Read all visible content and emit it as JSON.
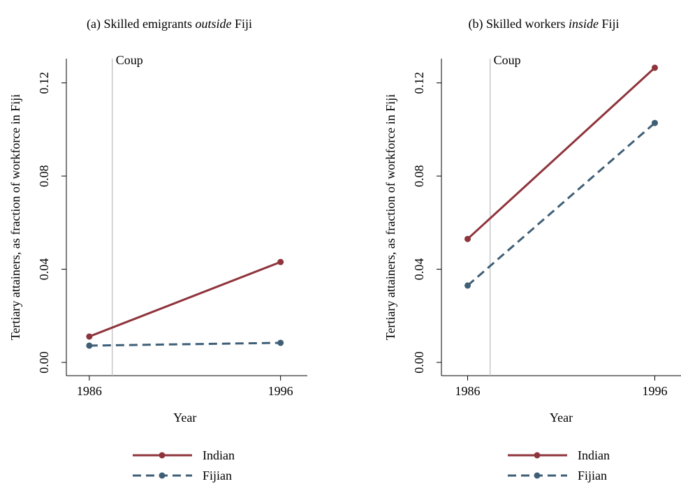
{
  "chart_data": [
    {
      "type": "line",
      "title_parts": [
        "(a) Skilled emigrants ",
        "outside",
        " Fiji"
      ],
      "title_italic": [
        false,
        true,
        false
      ],
      "x_label": "Year",
      "y_label": "Tertiary attainers, as fraction of workforce in Fiji",
      "x": [
        1986,
        1996
      ],
      "series": [
        {
          "name": "Indian",
          "color": "#8f343c",
          "dashed": false,
          "values": [
            0.0111,
            0.0431
          ]
        },
        {
          "name": "Fijian",
          "color": "#3f5f77",
          "dashed": true,
          "values": [
            0.0072,
            0.0084
          ]
        }
      ],
      "xlim": [
        1984.8,
        1997.4
      ],
      "ylim": [
        -0.0057,
        0.1304
      ],
      "xticks": [
        1986,
        1996
      ],
      "yticks": [
        {
          "value": 0,
          "label": "0.00"
        },
        {
          "value": 0.04,
          "label": "0.04"
        },
        {
          "value": 0.08,
          "label": "0.08"
        },
        {
          "value": 0.12,
          "label": "0.12"
        }
      ],
      "annotations": [
        {
          "x": 1987.2,
          "text": "Coup"
        }
      ],
      "grid": false
    },
    {
      "type": "line",
      "title_parts": [
        "(b) Skilled workers ",
        "inside",
        " Fiji"
      ],
      "title_italic": [
        false,
        true,
        false
      ],
      "x_label": "Year",
      "y_label": "Tertiary attainers, as fraction of workforce in Fiji",
      "x": [
        1986,
        1996
      ],
      "series": [
        {
          "name": "Indian",
          "color": "#8f343c",
          "dashed": false,
          "values": [
            0.053,
            0.1265
          ]
        },
        {
          "name": "Fijian",
          "color": "#3f5f77",
          "dashed": true,
          "values": [
            0.033,
            0.1028
          ]
        }
      ],
      "xlim": [
        1984.6,
        1997.4
      ],
      "ylim": [
        -0.0057,
        0.1304
      ],
      "xticks": [
        1986,
        1996
      ],
      "yticks": [
        {
          "value": 0,
          "label": "0.00"
        },
        {
          "value": 0.04,
          "label": "0.04"
        },
        {
          "value": 0.08,
          "label": "0.08"
        },
        {
          "value": 0.12,
          "label": "0.12"
        }
      ],
      "annotations": [
        {
          "x": 1987.2,
          "text": "Coup"
        }
      ],
      "grid": false
    }
  ]
}
